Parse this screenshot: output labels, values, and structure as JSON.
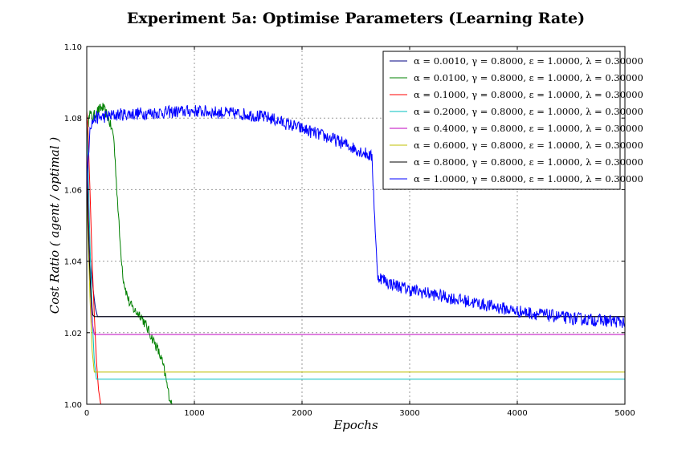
{
  "chart_data": {
    "type": "line",
    "title": "Experiment 5a: Optimise Parameters (Learning Rate)",
    "xlabel": "Epochs",
    "ylabel": "Cost Ratio ( agent / optimal )",
    "xlim": [
      0,
      5000
    ],
    "ylim": [
      1.0,
      1.1
    ],
    "x_ticks": [
      0,
      1000,
      2000,
      3000,
      4000,
      5000
    ],
    "y_ticks": [
      1.0,
      1.02,
      1.04,
      1.06,
      1.08,
      1.1
    ],
    "x_tick_labels": [
      "0",
      "1000",
      "2000",
      "3000",
      "4000",
      "5000"
    ],
    "y_tick_labels": [
      "1.00",
      "1.02",
      "1.04",
      "1.06",
      "1.08",
      "1.10"
    ],
    "grid": true,
    "legend_position": "top-right",
    "series": [
      {
        "name": "α = 0.0010, γ = 0.8000, ε = 1.0000, λ = 0.30000",
        "color": "#000080",
        "x": [
          0,
          10,
          25,
          40,
          60,
          80,
          100,
          5000
        ],
        "y": [
          1.065,
          1.055,
          1.045,
          1.038,
          1.032,
          1.027,
          1.0245,
          1.0245
        ]
      },
      {
        "name": "α = 0.0100, γ = 0.8000, ε = 1.0000, λ = 0.30000",
        "color": "#008000",
        "noise": 0.0015,
        "x": [
          0,
          20,
          50,
          100,
          150,
          200,
          250,
          280,
          310,
          340,
          370,
          400,
          450,
          500,
          550,
          600,
          650,
          700,
          730,
          760,
          790,
          800,
          5000
        ],
        "y": [
          1.07,
          1.082,
          1.08,
          1.082,
          1.083,
          1.08,
          1.075,
          1.06,
          1.045,
          1.035,
          1.031,
          1.028,
          1.026,
          1.025,
          1.022,
          1.019,
          1.016,
          1.012,
          1.008,
          1.003,
          1.0,
          1.0,
          1.0
        ]
      },
      {
        "name": "α = 0.1000, γ = 0.8000, ε = 1.0000, λ = 0.30000",
        "color": "#ff0000",
        "x": [
          0,
          10,
          30,
          50,
          70,
          90,
          110,
          130,
          5000
        ],
        "y": [
          1.082,
          1.078,
          1.06,
          1.04,
          1.025,
          1.012,
          1.004,
          1.0,
          1.0
        ]
      },
      {
        "name": "α = 0.2000, γ = 0.8000, ε = 1.0000, λ = 0.30000",
        "color": "#00bfbf",
        "x": [
          0,
          10,
          30,
          50,
          70,
          90,
          5000
        ],
        "y": [
          1.078,
          1.07,
          1.045,
          1.025,
          1.012,
          1.007,
          1.007
        ]
      },
      {
        "name": "α = 0.4000, γ = 0.8000, ε = 1.0000, λ = 0.30000",
        "color": "#bf00bf",
        "x": [
          0,
          10,
          30,
          50,
          70,
          5000
        ],
        "y": [
          1.072,
          1.06,
          1.035,
          1.023,
          1.0195,
          1.0195
        ]
      },
      {
        "name": "α = 0.6000, γ = 0.8000, ε = 1.0000, λ = 0.30000",
        "color": "#bfbf00",
        "x": [
          0,
          10,
          30,
          50,
          70,
          5000
        ],
        "y": [
          1.06,
          1.05,
          1.03,
          1.015,
          1.009,
          1.009
        ]
      },
      {
        "name": "α = 0.8000, γ = 0.8000, ε = 1.0000, λ = 0.30000",
        "color": "#000000",
        "x": [
          0,
          10,
          25,
          40,
          55,
          70,
          5000
        ],
        "y": [
          1.068,
          1.055,
          1.04,
          1.03,
          1.025,
          1.0245,
          1.0245
        ]
      },
      {
        "name": "α = 1.0000, γ = 0.8000, ε = 1.0000, λ = 0.30000",
        "color": "#0000ff",
        "noise": 0.0018,
        "x": [
          0,
          30,
          80,
          300,
          1000,
          1500,
          1700,
          2000,
          2300,
          2600,
          2650,
          2700,
          2800,
          3000,
          3500,
          4000,
          4500,
          5000
        ],
        "y": [
          1.06,
          1.078,
          1.08,
          1.081,
          1.082,
          1.081,
          1.08,
          1.077,
          1.074,
          1.07,
          1.069,
          1.036,
          1.034,
          1.032,
          1.029,
          1.026,
          1.024,
          1.023
        ]
      }
    ]
  }
}
